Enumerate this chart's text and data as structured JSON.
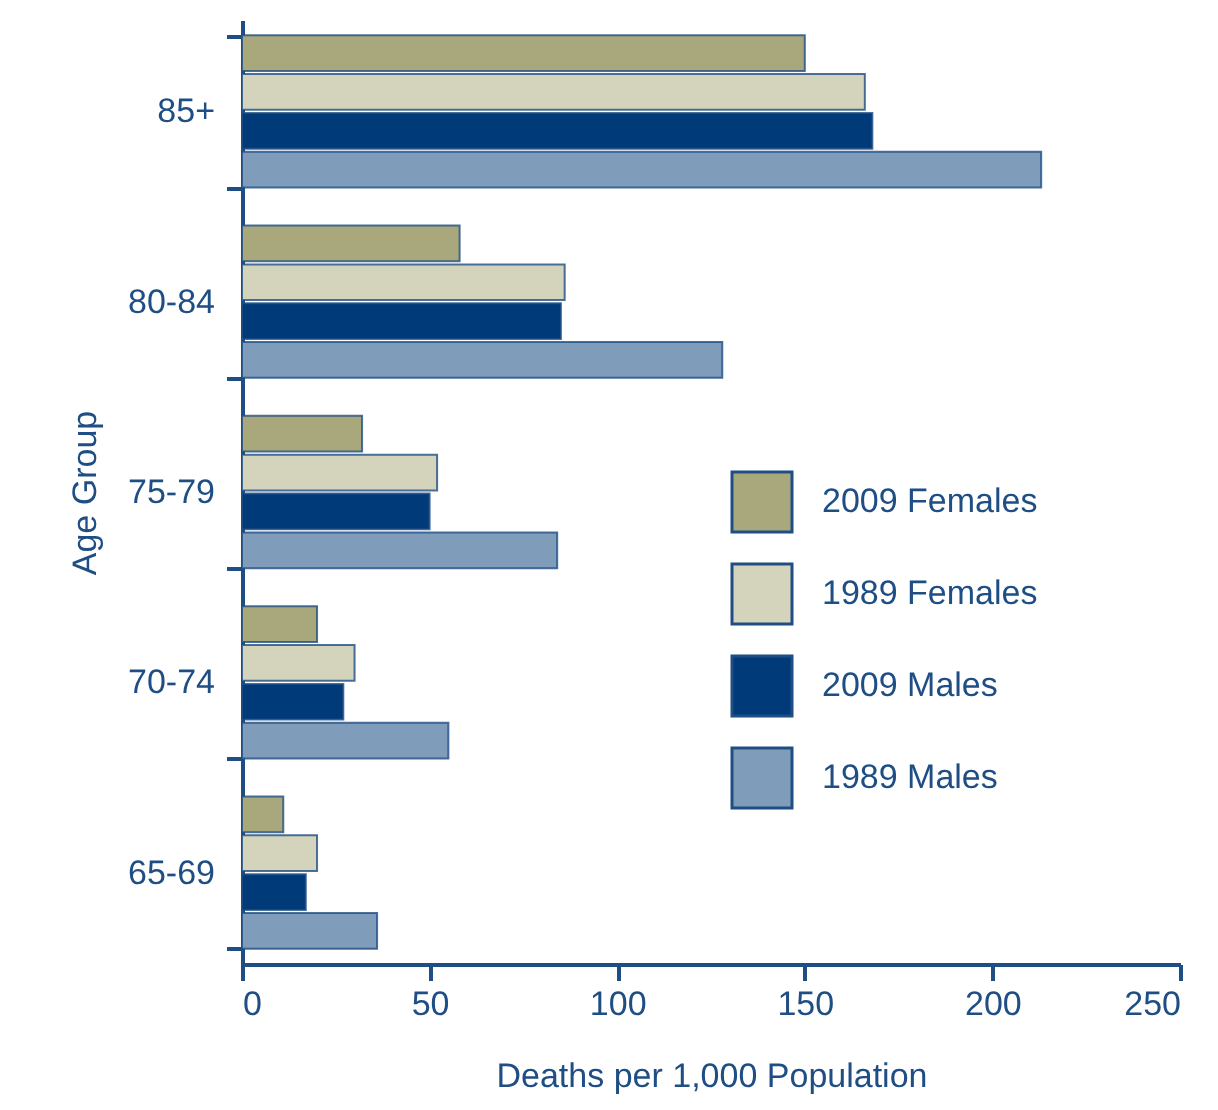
{
  "chart_data": {
    "type": "bar",
    "orientation": "horizontal",
    "xlabel": "Deaths per 1,000 Population",
    "ylabel": "Age Group",
    "categories": [
      "85+",
      "80-84",
      "75-79",
      "70-74",
      "65-69"
    ],
    "series": [
      {
        "name": "2009 Females",
        "color": "#a8a87c",
        "values": [
          150,
          58,
          32,
          20,
          11
        ]
      },
      {
        "name": "1989 Females",
        "color": "#d4d4bc",
        "values": [
          166,
          86,
          52,
          30,
          20
        ]
      },
      {
        "name": "2009 Males",
        "color": "#003a78",
        "values": [
          168,
          85,
          50,
          27,
          17
        ]
      },
      {
        "name": "1989 Males",
        "color": "#7f9dbb",
        "values": [
          213,
          128,
          84,
          55,
          36
        ]
      }
    ],
    "xlim": [
      0,
      250
    ],
    "xticks": [
      0,
      50,
      100,
      150,
      200,
      250
    ],
    "grid": false,
    "legend": "right"
  }
}
